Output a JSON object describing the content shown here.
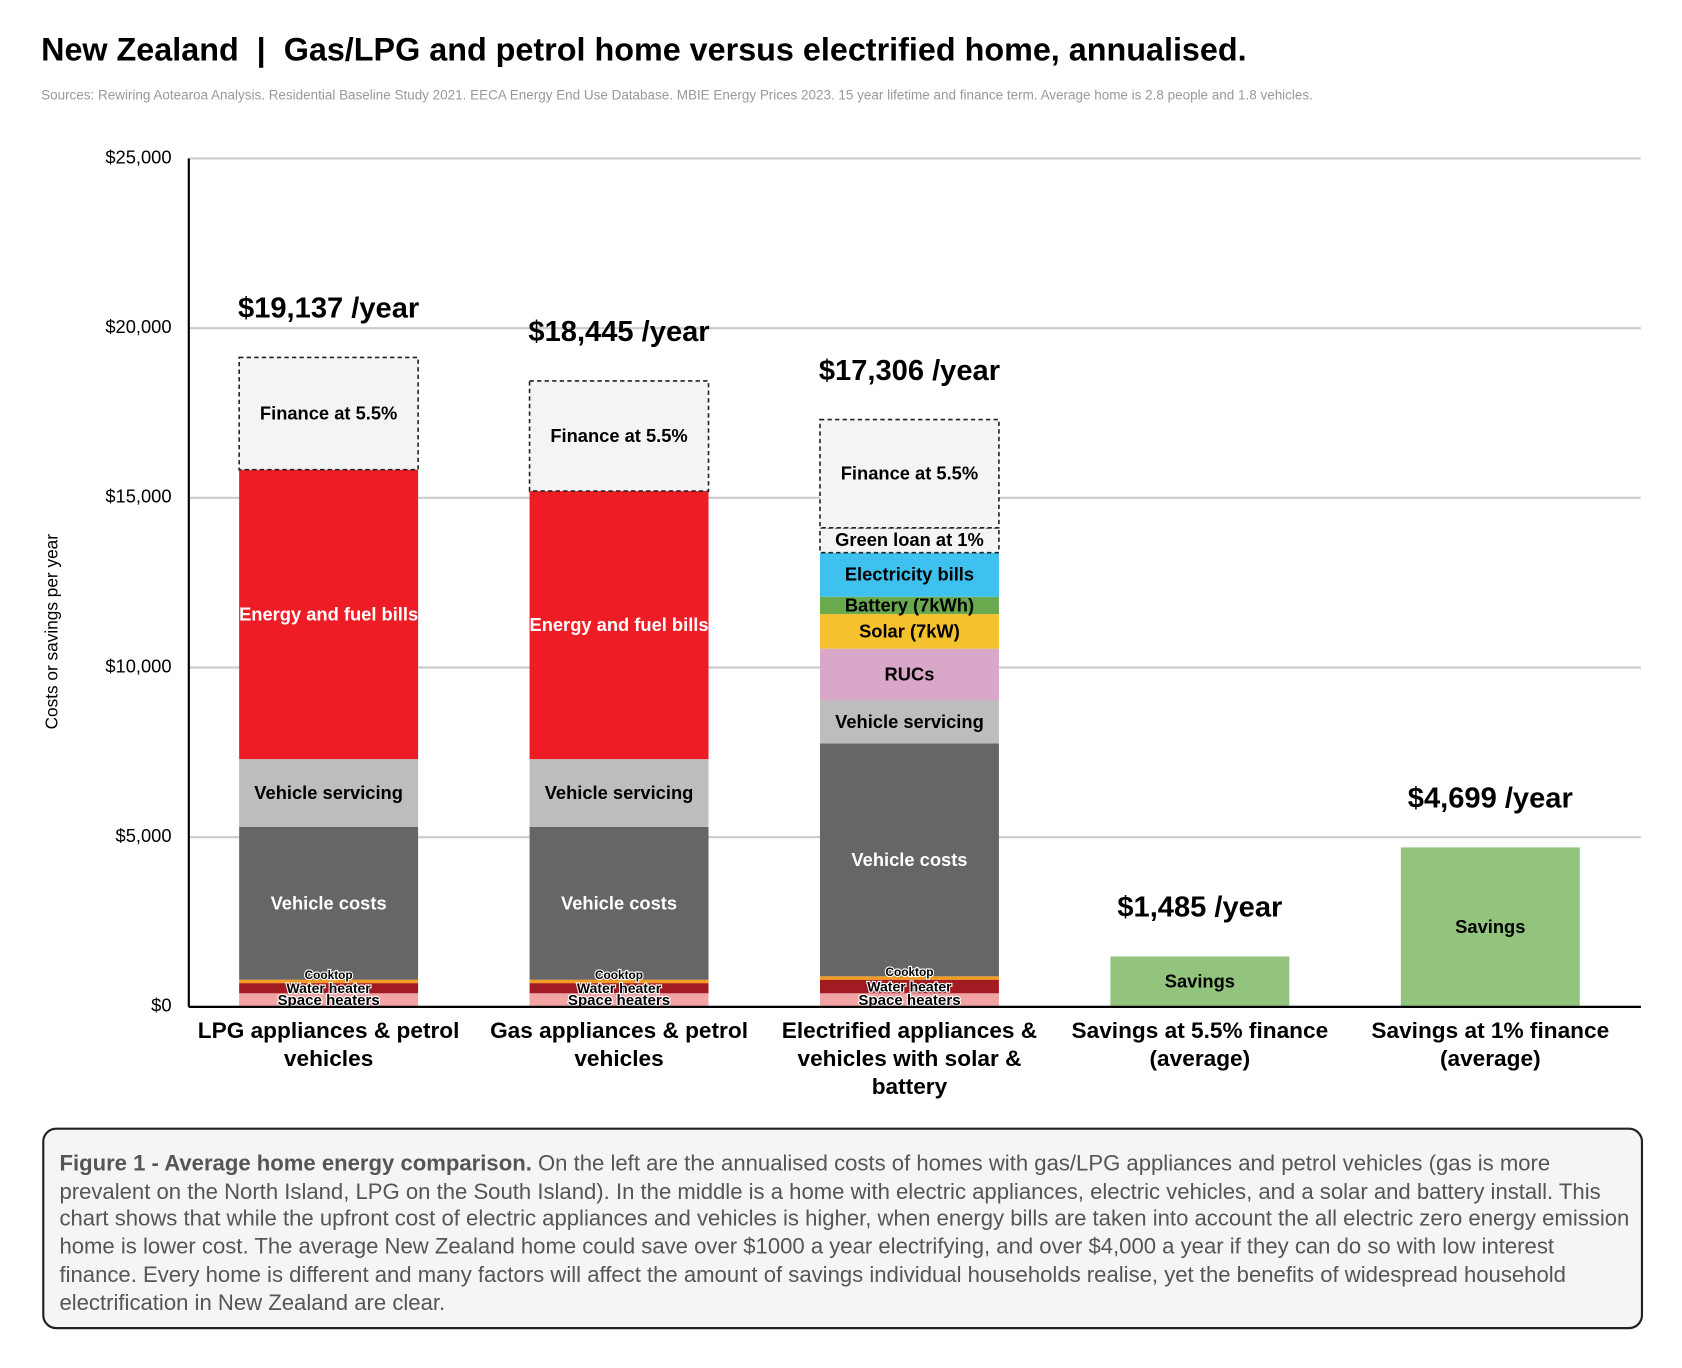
{
  "title": "New Zealand  |  Gas/LPG and petrol home versus electrified home, annualised.",
  "subtitle": "Sources: Rewiring Aotearoa Analysis. Residential Baseline Study 2021. EECA Energy End Use Database. MBIE Energy Prices 2023. 15 year lifetime and finance term. Average home is 2.8 people and 1.8 vehicles.",
  "caption": {
    "bold": "Figure 1 - Average home energy comparison.",
    "text": "On the left are the annualised costs of homes with gas/LPG appliances and petrol vehicles (gas is more prevalent on the North Island, LPG on the South Island). In the middle is a home with electric appliances, electric vehicles, and a solar and battery install. This chart shows that while the upfront cost of electric appliances and vehicles is higher, when energy bills are taken into account the all electric zero energy emission home is lower cost. The average New Zealand home could save over $1000 a year electrifying, and over $4,000 a year if they can do so with low interest finance. Every home is different and many factors will affect the amount of savings individual households realise, yet the benefits of widespread household electrification in New Zealand are clear."
  },
  "chart_data": {
    "type": "stacked_bar",
    "y_label": "Costs or savings per year",
    "categories": [
      "LPG appliances & petrol vehicles",
      "Gas appliances & petrol vehicles",
      "Electrified appliances & vehicles with solar & battery",
      "Savings at 5.5% finance (average)",
      "Savings at 1% finance (average)"
    ],
    "total_labels": [
      "$19,137 /year",
      "$18,445 /year",
      "$17,306 /year",
      "$1,485 /year",
      "$4,699 /year"
    ],
    "series": [
      {
        "name": "Space heaters",
        "color": "#f2a3a3",
        "values": [
          400,
          400,
          400,
          null,
          null
        ]
      },
      {
        "name": "Water heater",
        "color": "#a31b22",
        "values": [
          300,
          300,
          400,
          null,
          null
        ]
      },
      {
        "name": "Cooktop",
        "color": "#f39c1f",
        "values": [
          100,
          100,
          100,
          null,
          null
        ]
      },
      {
        "name": "Vehicle costs",
        "color": "#666666",
        "values": [
          4500,
          4500,
          6860,
          null,
          null
        ]
      },
      {
        "name": "Vehicle servicing",
        "color": "#bdbdbd",
        "values": [
          2000,
          2000,
          1270,
          null,
          null
        ]
      },
      {
        "name": "Energy and fuel bills",
        "color": "#ee1c25",
        "values": [
          8530,
          7900,
          null,
          null,
          null
        ]
      },
      {
        "name": "RUCs",
        "color": "#d9a8c8",
        "values": [
          null,
          null,
          1525,
          null,
          null
        ]
      },
      {
        "name": "Solar (7kW)",
        "color": "#f5c12e",
        "values": [
          null,
          null,
          1020,
          null,
          null
        ]
      },
      {
        "name": "Battery (7kWh)",
        "color": "#6aaa4e",
        "values": [
          null,
          null,
          510,
          null,
          null
        ]
      },
      {
        "name": "Electricity bills",
        "color": "#3ec1ef",
        "values": [
          null,
          null,
          1300,
          null,
          null
        ]
      },
      {
        "name": "Green loan at 1%",
        "color": "#f4f4f6",
        "dashed": true,
        "values": [
          null,
          null,
          730,
          null,
          null
        ]
      },
      {
        "name": "Finance at 5.5%",
        "color": "#f4f4f6",
        "dashed": true,
        "values": [
          3307,
          3245,
          3191,
          null,
          null
        ]
      },
      {
        "name": "Savings",
        "color": "#93c47d",
        "values": [
          null,
          null,
          null,
          1485,
          4699
        ]
      }
    ],
    "ylim": [
      0,
      25000
    ],
    "yticks": [
      {
        "value": 0,
        "label": "$0"
      },
      {
        "value": 5000,
        "label": "$5,000"
      },
      {
        "value": 10000,
        "label": "$10,000"
      },
      {
        "value": 15000,
        "label": "$15,000"
      },
      {
        "value": 20000,
        "label": "$20,000"
      },
      {
        "value": 25000,
        "label": "$25,000"
      }
    ],
    "grid": true
  }
}
